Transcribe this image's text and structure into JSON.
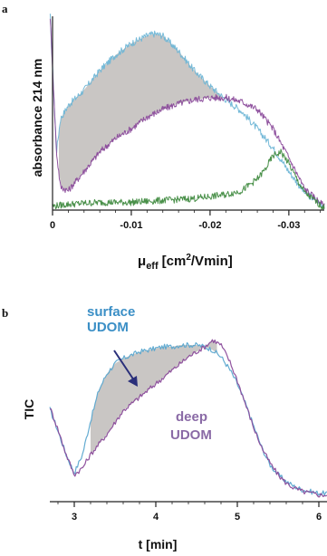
{
  "chart_data": [
    {
      "panel": "a",
      "type": "line",
      "ylabel": "absorbance 214 nm",
      "xlabel_main": "μ",
      "xlabel_sub": "eff",
      "xlabel_units": "[cm",
      "xlabel_exp": "2",
      "xlabel_tail": "/Vmin]",
      "xlim": [
        0,
        -0.0345
      ],
      "ylim": [
        0,
        1
      ],
      "xticks": [
        0,
        -0.01,
        -0.02,
        -0.03
      ],
      "xtick_labels": [
        "0",
        "-0.01",
        "-0.02",
        "-0.03"
      ],
      "colors": {
        "blue": "#6fb6d6",
        "purple": "#8a4a9a",
        "green": "#3f8a3f",
        "fill": "#c9c6c4",
        "axis": "#222222"
      },
      "series": [
        {
          "key": "blue",
          "x": [
            0.0003,
            -0.0005,
            -0.001,
            -0.002,
            -0.004,
            -0.006,
            -0.008,
            -0.01,
            -0.012,
            -0.013,
            -0.014,
            -0.016,
            -0.018,
            -0.02,
            -0.022,
            -0.024,
            -0.026,
            -0.028,
            -0.03,
            -0.032,
            -0.0345
          ],
          "y": [
            1.0,
            0.3,
            0.47,
            0.54,
            0.62,
            0.72,
            0.8,
            0.86,
            0.9,
            0.91,
            0.9,
            0.82,
            0.72,
            0.64,
            0.57,
            0.51,
            0.42,
            0.32,
            0.2,
            0.09,
            0.02
          ]
        },
        {
          "key": "purple",
          "x": [
            0.0003,
            -0.0005,
            -0.001,
            -0.002,
            -0.004,
            -0.006,
            -0.008,
            -0.01,
            -0.012,
            -0.014,
            -0.016,
            -0.018,
            -0.02,
            -0.022,
            -0.024,
            -0.026,
            -0.028,
            -0.03,
            -0.032,
            -0.0345
          ],
          "y": [
            1.0,
            0.3,
            0.12,
            0.1,
            0.2,
            0.3,
            0.37,
            0.42,
            0.48,
            0.52,
            0.55,
            0.57,
            0.58,
            0.58,
            0.56,
            0.52,
            0.42,
            0.27,
            0.11,
            0.02
          ]
        },
        {
          "key": "green",
          "x": [
            0,
            -0.002,
            -0.006,
            -0.01,
            -0.014,
            -0.018,
            -0.02,
            -0.022,
            -0.024,
            -0.026,
            -0.027,
            -0.028,
            -0.029,
            -0.03,
            -0.031,
            -0.032,
            -0.0345
          ],
          "y": [
            0.02,
            0.03,
            0.04,
            0.04,
            0.05,
            0.06,
            0.07,
            0.08,
            0.1,
            0.16,
            0.21,
            0.28,
            0.3,
            0.24,
            0.16,
            0.09,
            0.01
          ]
        }
      ],
      "shaded_between": [
        "blue",
        "purple"
      ],
      "shaded_xrange": [
        -0.0008,
        -0.0215
      ]
    },
    {
      "panel": "b",
      "type": "line",
      "ylabel": "TIC",
      "xlabel": "t [min]",
      "xlim": [
        2.7,
        6.1
      ],
      "ylim": [
        0,
        1
      ],
      "xticks": [
        3,
        4,
        5,
        6
      ],
      "xtick_labels": [
        "3",
        "4",
        "5",
        "6"
      ],
      "annotations": {
        "surface_line1": "surface",
        "surface_line2": "UDOM",
        "deep_line1": "deep",
        "deep_line2": "UDOM"
      },
      "colors": {
        "surface": "#5aa6cf",
        "deep": "#8a4a9a",
        "fill": "#c9c6c4",
        "arrow": "#2a2f7a",
        "axis": "#222222"
      },
      "series": [
        {
          "key": "surface",
          "x": [
            2.7,
            2.8,
            2.9,
            3.0,
            3.1,
            3.2,
            3.3,
            3.4,
            3.5,
            3.6,
            3.7,
            3.8,
            3.9,
            4.0,
            4.1,
            4.2,
            4.3,
            4.4,
            4.5,
            4.6,
            4.7,
            4.8,
            4.9,
            5.0,
            5.1,
            5.2,
            5.3,
            5.4,
            5.5,
            5.6,
            5.7,
            5.8,
            5.9,
            6.0,
            6.1
          ],
          "y": [
            0.55,
            0.42,
            0.28,
            0.17,
            0.28,
            0.48,
            0.66,
            0.76,
            0.82,
            0.85,
            0.87,
            0.89,
            0.9,
            0.91,
            0.92,
            0.92,
            0.93,
            0.93,
            0.93,
            0.92,
            0.9,
            0.86,
            0.79,
            0.7,
            0.58,
            0.45,
            0.32,
            0.22,
            0.16,
            0.12,
            0.09,
            0.07,
            0.06,
            0.05,
            0.05
          ]
        },
        {
          "key": "deep",
          "x": [
            2.7,
            2.8,
            2.9,
            3.0,
            3.1,
            3.2,
            3.3,
            3.4,
            3.5,
            3.6,
            3.7,
            3.8,
            3.9,
            4.0,
            4.1,
            4.2,
            4.3,
            4.4,
            4.5,
            4.6,
            4.7,
            4.8,
            4.9,
            5.0,
            5.1,
            5.2,
            5.3,
            5.4,
            5.5,
            5.6,
            5.7,
            5.8,
            5.9,
            6.0,
            6.1
          ],
          "y": [
            0.56,
            0.43,
            0.28,
            0.16,
            0.2,
            0.28,
            0.34,
            0.4,
            0.47,
            0.54,
            0.58,
            0.62,
            0.66,
            0.7,
            0.74,
            0.78,
            0.82,
            0.86,
            0.89,
            0.92,
            0.96,
            0.93,
            0.84,
            0.72,
            0.58,
            0.44,
            0.32,
            0.23,
            0.16,
            0.11,
            0.08,
            0.06,
            0.05,
            0.04,
            0.04
          ]
        }
      ],
      "shaded_between": [
        "surface",
        "deep"
      ],
      "shaded_xrange": [
        3.2,
        4.75
      ]
    }
  ]
}
